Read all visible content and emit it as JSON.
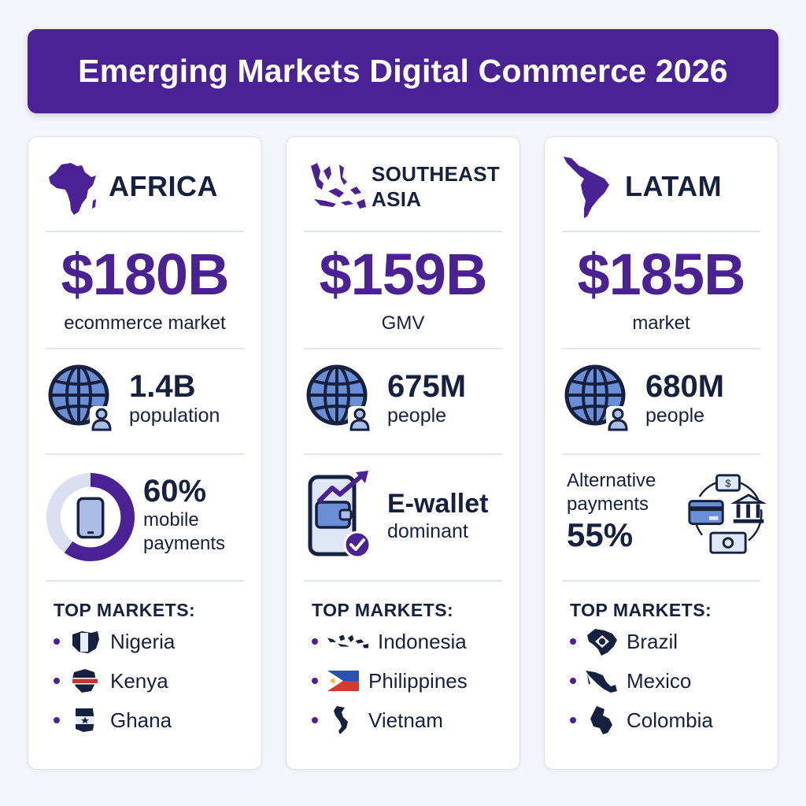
{
  "title": "Emerging Markets Digital Commerce 2026",
  "colors": {
    "accent": "#4a2296",
    "text": "#16213f",
    "globe": "#6b8fd6"
  },
  "regions": [
    {
      "name": "AFRICA",
      "map_icon": "africa-map-icon",
      "market_value": "$180B",
      "market_label": "ecommerce market",
      "pop_value": "1.4B",
      "pop_label": "population",
      "feature": {
        "value": "60%",
        "line1": "mobile",
        "line2": "payments",
        "progress": 0.6
      },
      "top_markets_title": "TOP MARKETS:",
      "countries": [
        {
          "name": "Nigeria",
          "icon": "nigeria-map-icon"
        },
        {
          "name": "Kenya",
          "icon": "kenya-map-icon"
        },
        {
          "name": "Ghana",
          "icon": "ghana-map-icon"
        }
      ]
    },
    {
      "name_line1": "SOUTHEAST",
      "name_line2": "ASIA",
      "map_icon": "southeast-asia-map-icon",
      "market_value": "$159B",
      "market_label": "GMV",
      "pop_value": "675M",
      "pop_label": "people",
      "feature": {
        "line1": "E-wallet",
        "line2": "dominant"
      },
      "top_markets_title": "TOP MARKETS:",
      "countries": [
        {
          "name": "Indonesia",
          "icon": "indonesia-map-icon"
        },
        {
          "name": "Philippines",
          "icon": "philippines-flag-icon"
        },
        {
          "name": "Vietnam",
          "icon": "vietnam-map-icon"
        }
      ]
    },
    {
      "name": "LATAM",
      "map_icon": "latin-america-map-icon",
      "market_value": "$185B",
      "market_label": "market",
      "pop_value": "680M",
      "pop_label": "people",
      "feature": {
        "line1": "Alternative",
        "line2": "payments",
        "value": "55%"
      },
      "top_markets_title": "TOP MARKETS:",
      "countries": [
        {
          "name": "Brazil",
          "icon": "brazil-map-icon"
        },
        {
          "name": "Mexico",
          "icon": "mexico-map-icon"
        },
        {
          "name": "Colombia",
          "icon": "colombia-map-icon"
        }
      ]
    }
  ]
}
